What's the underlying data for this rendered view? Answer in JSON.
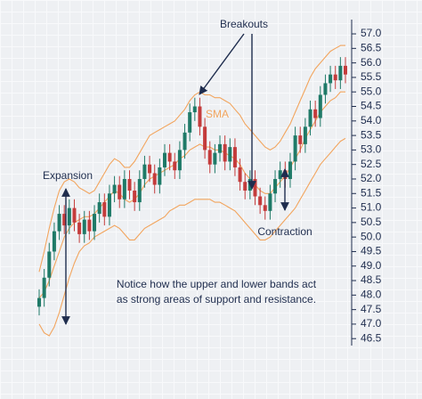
{
  "chart_data": {
    "type": "candlestick",
    "annotations": {
      "breakouts": "Breakouts",
      "sma": "SMA",
      "expansion": "Expansion",
      "contraction": "Contraction"
    },
    "note": [
      "Notice how the upper and lower bands act",
      "as strong areas of support and resistance."
    ],
    "up_color": "#1f7a68",
    "down_color": "#c43c3c",
    "open": [
      47.6,
      47.9,
      48.6,
      49.5,
      50.2,
      50.8,
      50.4,
      51.0,
      50.5,
      50.1,
      50.6,
      50.2,
      50.8,
      51.2,
      50.7,
      51.5,
      51.8,
      51.3,
      52.0,
      51.6,
      51.2,
      52.0,
      52.5,
      52.2,
      51.8,
      52.4,
      52.9,
      52.6,
      52.3,
      53.0,
      53.6,
      54.3,
      54.5,
      53.8,
      53.0,
      52.5,
      52.9,
      53.2,
      52.6,
      53.1,
      52.4,
      51.9,
      51.6,
      52.0,
      51.4,
      51.1,
      50.9,
      51.5,
      52.0,
      52.3,
      52.0,
      52.6,
      53.5,
      53.2,
      53.8,
      54.4,
      54.1,
      54.9,
      55.3,
      55.6,
      55.4,
      55.9
    ],
    "high": [
      48.2,
      48.9,
      49.8,
      50.5,
      51.1,
      51.1,
      51.3,
      51.3,
      50.8,
      50.9,
      50.9,
      51.1,
      51.5,
      51.5,
      51.8,
      52.1,
      52.1,
      52.3,
      52.3,
      51.9,
      52.3,
      52.8,
      52.8,
      52.5,
      52.7,
      53.2,
      53.2,
      52.9,
      53.3,
      53.9,
      54.6,
      54.8,
      54.8,
      54.1,
      53.3,
      53.2,
      53.5,
      53.5,
      53.4,
      53.4,
      52.7,
      52.2,
      52.3,
      52.3,
      51.7,
      51.4,
      51.8,
      52.3,
      52.6,
      52.6,
      52.9,
      53.8,
      53.8,
      54.1,
      54.7,
      54.7,
      55.2,
      55.6,
      55.9,
      55.9,
      56.2,
      56.2
    ],
    "low": [
      47.3,
      47.6,
      48.3,
      49.2,
      49.9,
      50.1,
      50.1,
      50.2,
      49.8,
      49.8,
      49.9,
      49.9,
      50.5,
      50.4,
      50.4,
      51.2,
      51.0,
      51.0,
      51.3,
      50.9,
      50.9,
      51.7,
      51.9,
      51.5,
      51.5,
      52.1,
      52.3,
      52.0,
      52.0,
      52.7,
      53.3,
      54.0,
      53.5,
      52.7,
      52.2,
      52.2,
      52.6,
      52.3,
      52.3,
      52.1,
      51.6,
      51.3,
      51.3,
      51.1,
      50.8,
      50.6,
      50.6,
      51.2,
      51.7,
      51.7,
      51.7,
      52.3,
      52.9,
      52.9,
      53.5,
      53.8,
      53.8,
      54.6,
      55.0,
      55.1,
      55.1,
      55.3
    ],
    "close": [
      47.9,
      48.6,
      49.5,
      50.2,
      50.8,
      50.4,
      51.0,
      50.5,
      50.1,
      50.6,
      50.2,
      50.8,
      51.2,
      50.7,
      51.5,
      51.8,
      51.3,
      52.0,
      51.6,
      51.2,
      52.0,
      52.5,
      52.2,
      51.8,
      52.4,
      52.9,
      52.6,
      52.3,
      53.0,
      53.6,
      54.3,
      54.5,
      53.8,
      53.0,
      52.5,
      52.9,
      53.2,
      52.6,
      53.1,
      52.4,
      51.9,
      51.6,
      52.0,
      51.4,
      51.1,
      50.9,
      51.5,
      52.0,
      52.3,
      52.0,
      52.6,
      53.5,
      53.2,
      53.8,
      54.4,
      54.1,
      54.9,
      55.3,
      55.6,
      55.4,
      55.9,
      55.6
    ],
    "bands": {
      "color": "#f2a55e",
      "upper": [
        48.8,
        49.5,
        50.3,
        51.0,
        51.6,
        51.9,
        52.0,
        51.9,
        51.7,
        51.6,
        51.5,
        51.6,
        51.9,
        52.2,
        52.5,
        52.7,
        52.6,
        52.4,
        52.4,
        52.6,
        52.9,
        53.2,
        53.5,
        53.6,
        53.7,
        53.8,
        53.9,
        54.0,
        54.2,
        54.4,
        54.7,
        54.9,
        55.0,
        54.9,
        54.9,
        54.8,
        54.8,
        54.7,
        54.6,
        54.4,
        54.2,
        53.9,
        53.7,
        53.5,
        53.3,
        53.1,
        53.0,
        53.1,
        53.3,
        53.6,
        53.9,
        54.3,
        54.7,
        55.1,
        55.5,
        55.8,
        56.0,
        56.2,
        56.4,
        56.5,
        56.6,
        56.6
      ],
      "middle": [
        47.9,
        48.1,
        48.5,
        49.0,
        49.5,
        50.0,
        50.3,
        50.5,
        50.6,
        50.7,
        50.7,
        50.8,
        51.0,
        51.2,
        51.4,
        51.6,
        51.5,
        51.3,
        51.2,
        51.3,
        51.5,
        51.8,
        52.0,
        52.1,
        52.2,
        52.3,
        52.4,
        52.5,
        52.7,
        52.8,
        53.0,
        53.1,
        53.2,
        53.1,
        53.1,
        53.0,
        53.0,
        52.9,
        52.8,
        52.7,
        52.5,
        52.2,
        52.0,
        51.8,
        51.6,
        51.5,
        51.5,
        51.7,
        51.9,
        52.1,
        52.4,
        52.7,
        53.0,
        53.4,
        53.7,
        54.0,
        54.3,
        54.5,
        54.7,
        54.8,
        55.0,
        55.0
      ],
      "lower": [
        47.0,
        46.7,
        46.6,
        46.9,
        47.4,
        48.0,
        48.6,
        49.1,
        49.5,
        49.7,
        49.8,
        50.0,
        50.1,
        50.2,
        50.3,
        50.4,
        50.3,
        50.1,
        49.9,
        49.9,
        50.1,
        50.3,
        50.4,
        50.5,
        50.6,
        50.7,
        50.9,
        51.0,
        51.1,
        51.1,
        51.2,
        51.3,
        51.3,
        51.3,
        51.3,
        51.2,
        51.2,
        51.1,
        51.0,
        50.9,
        50.7,
        50.5,
        50.3,
        50.1,
        49.9,
        49.9,
        50.0,
        50.2,
        50.4,
        50.6,
        50.8,
        51.0,
        51.3,
        51.6,
        51.9,
        52.2,
        52.5,
        52.7,
        52.9,
        53.1,
        53.3,
        53.4
      ]
    },
    "ylim": [
      46.2,
      57.4
    ],
    "yticks": [
      46.5,
      {
        "value": 47,
        "label": "47.0"
      },
      47.5,
      {
        "value": 48,
        "label": "48.0"
      },
      48.5,
      {
        "value": 49,
        "label": "49.0"
      },
      49.5,
      {
        "value": 50,
        "label": "50.0"
      },
      50.5,
      {
        "value": 51,
        "label": "51.0"
      },
      51.5,
      {
        "value": 52,
        "label": "52.0"
      },
      52.5,
      {
        "value": 53,
        "label": "53.0"
      },
      53.5,
      {
        "value": 54,
        "label": "54.0"
      },
      54.5,
      {
        "value": 55,
        "label": "55.0"
      },
      55.5,
      {
        "value": 56,
        "label": "56.0"
      },
      56.5,
      {
        "value": 57,
        "label": "57.0"
      }
    ]
  }
}
